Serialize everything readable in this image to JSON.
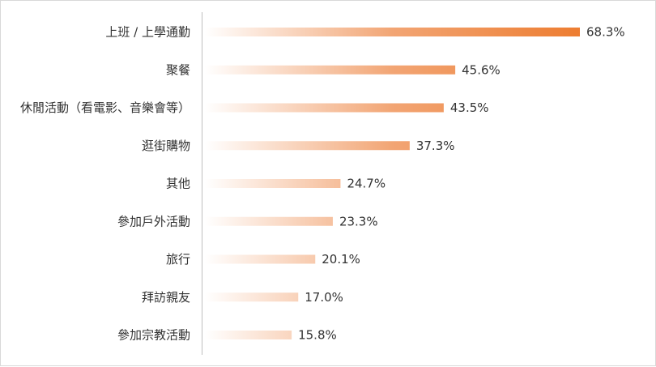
{
  "chart_data": {
    "type": "bar",
    "orientation": "horizontal",
    "categories": [
      "上班 / 上學通勤",
      "聚餐",
      "休閒活動（看電影、音樂會等）",
      "逛街購物",
      "其他",
      "參加戶外活動",
      "旅行",
      "拜訪親友",
      "參加宗教活動"
    ],
    "values": [
      68.3,
      45.6,
      43.5,
      37.3,
      24.7,
      23.3,
      20.1,
      17.0,
      15.8
    ],
    "value_labels": [
      "68.3%",
      "45.6%",
      "43.5%",
      "37.3%",
      "24.7%",
      "23.3%",
      "20.1%",
      "17.0%",
      "15.8%"
    ],
    "xlim": [
      0,
      75
    ],
    "bar_color": "#ED7D31",
    "bar_fill": "gradient-from-white",
    "grid": false,
    "legend": "none"
  }
}
